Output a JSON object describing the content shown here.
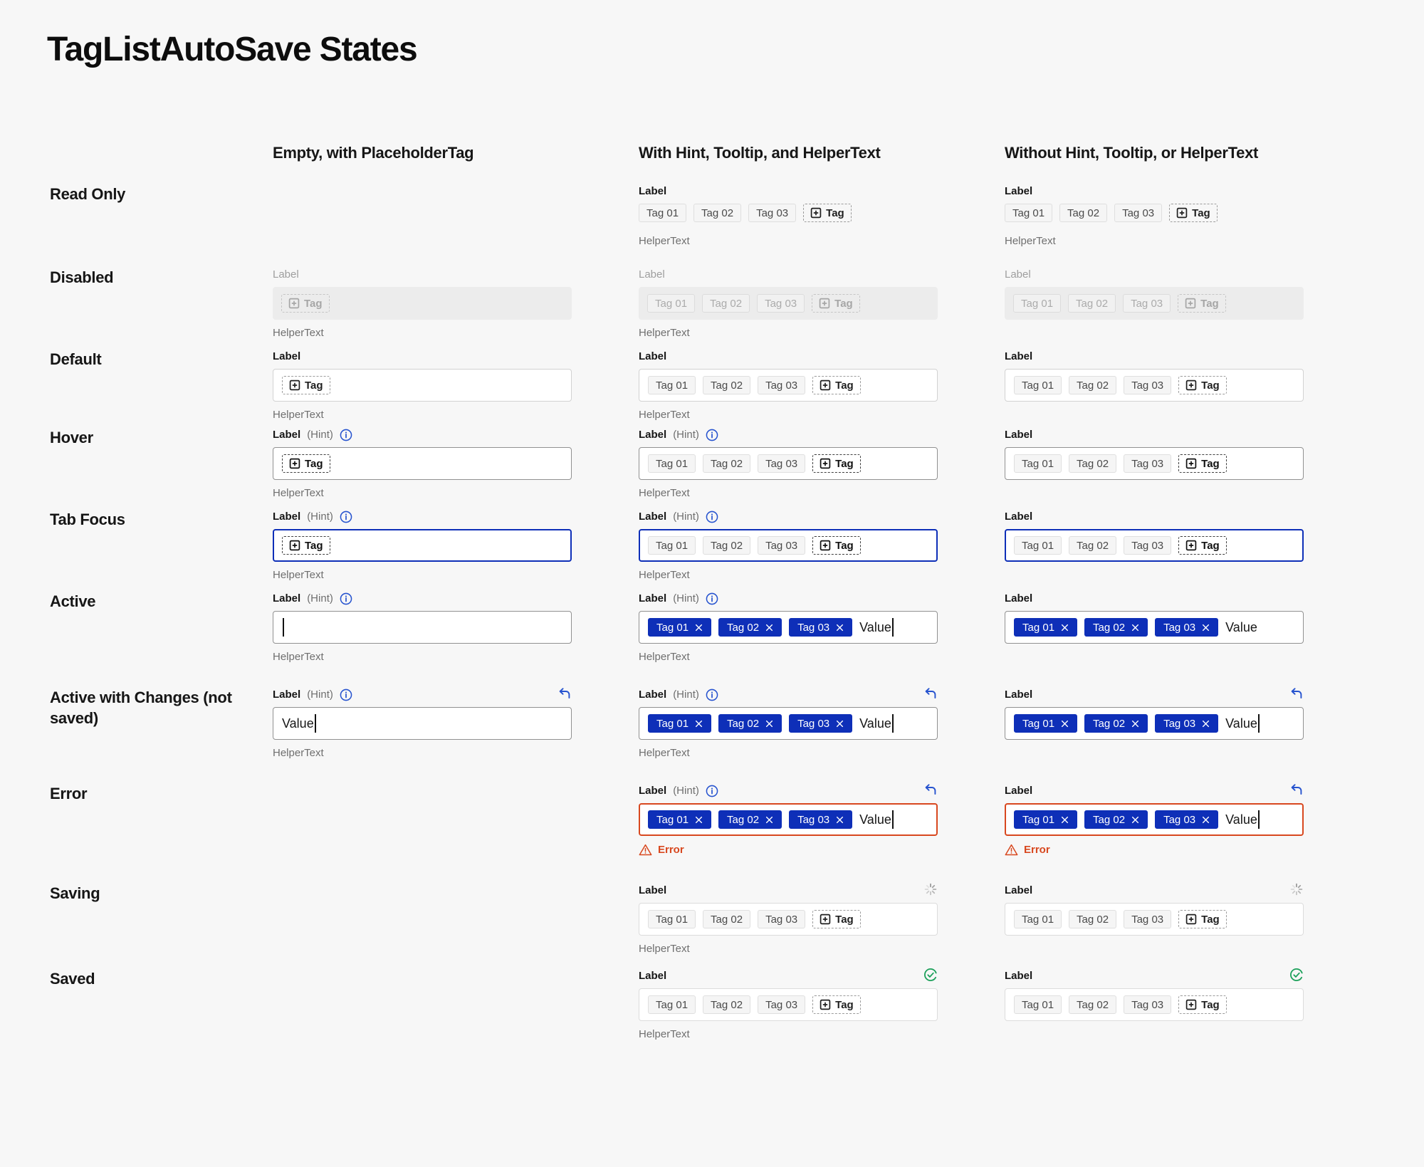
{
  "page": {
    "title": "TagListAutoSave States"
  },
  "colors": {
    "accent_blue": "#0E2FB8",
    "icon_blue": "#2653CF",
    "error_orange": "#D8481F",
    "success_green": "#1CA05A",
    "page_background": "#F7F7F7"
  },
  "strings": {
    "label": "Label",
    "hint": "(Hint)",
    "helper": "HelperText",
    "value": "Value",
    "error": "Error",
    "add_tag": "Tag",
    "tags": [
      "Tag 01",
      "Tag 02",
      "Tag 03"
    ]
  },
  "columns": [
    {
      "id": "empty-placeholder",
      "heading": "Empty, with PlaceholderTag"
    },
    {
      "id": "with-hint",
      "heading": "With Hint, Tooltip, and HelperText"
    },
    {
      "id": "without-hint",
      "heading": "Without Hint, Tooltip, or HelperText"
    }
  ],
  "rows": [
    {
      "name": "Read Only",
      "cells": [
        null,
        {
          "label": true,
          "box": "none",
          "tags": "gray",
          "addTag": "dark",
          "helper": true
        },
        {
          "label": true,
          "box": "none",
          "tags": "gray",
          "addTag": "dark",
          "helper": true
        }
      ]
    },
    {
      "name": "Disabled",
      "cells": [
        {
          "label": "disabled",
          "box": "disabled",
          "addTag": "gray",
          "helper": true
        },
        {
          "label": "disabled",
          "box": "disabled",
          "tags": "disabled",
          "addTag": "gray",
          "helper": true
        },
        {
          "label": "disabled",
          "box": "disabled",
          "tags": "disabled",
          "addTag": "gray"
        }
      ]
    },
    {
      "name": "Default",
      "cells": [
        {
          "label": true,
          "box": "default",
          "addTag": "dark",
          "helper": true
        },
        {
          "label": true,
          "box": "default",
          "tags": "gray",
          "addTag": "dark",
          "helper": true
        },
        {
          "label": true,
          "box": "default",
          "tags": "gray",
          "addTag": "dark"
        }
      ]
    },
    {
      "name": "Hover",
      "cells": [
        {
          "label": true,
          "hint": true,
          "box": "hover",
          "addTag": "strong",
          "helper": true
        },
        {
          "label": true,
          "hint": true,
          "box": "hover",
          "tags": "gray",
          "addTag": "strong",
          "helper": true
        },
        {
          "label": true,
          "box": "hover",
          "tags": "gray",
          "addTag": "strong"
        }
      ]
    },
    {
      "name": "Tab Focus",
      "cells": [
        {
          "label": true,
          "hint": true,
          "box": "focus",
          "addTag": "strong",
          "helper": true
        },
        {
          "label": true,
          "hint": true,
          "box": "focus",
          "tags": "gray",
          "addTag": "strong",
          "helper": true
        },
        {
          "label": true,
          "box": "focus",
          "tags": "gray",
          "addTag": "strong"
        }
      ]
    },
    {
      "name": "Active",
      "cells": [
        {
          "label": true,
          "hint": true,
          "box": "active",
          "cursor": true,
          "helper": true
        },
        {
          "label": true,
          "hint": true,
          "box": "active",
          "tags": "blue",
          "value": true,
          "cursor": true,
          "helper": true
        },
        {
          "label": true,
          "box": "active",
          "tags": "blue",
          "value": true
        }
      ]
    },
    {
      "name": "Active with Changes (not saved)",
      "cells": [
        {
          "label": true,
          "hint": true,
          "indicator": "undo",
          "box": "active",
          "value": true,
          "cursor": true,
          "helper": true
        },
        {
          "label": true,
          "hint": true,
          "indicator": "undo",
          "box": "active",
          "tags": "blue",
          "value": true,
          "cursor": true,
          "helper": true
        },
        {
          "label": true,
          "indicator": "undo",
          "box": "active",
          "tags": "blue",
          "value": true,
          "cursor": true
        }
      ]
    },
    {
      "name": "Error",
      "cells": [
        null,
        {
          "label": true,
          "hint": true,
          "indicator": "undo",
          "box": "error",
          "tags": "blue",
          "value": true,
          "cursor": true,
          "error": true
        },
        {
          "label": true,
          "indicator": "undo",
          "box": "error",
          "tags": "blue",
          "value": true,
          "cursor": true,
          "error": true
        }
      ]
    },
    {
      "name": "Saving",
      "cells": [
        null,
        {
          "label": true,
          "indicator": "spinner",
          "box": "autosave",
          "tags": "gray",
          "addTag": "dark",
          "helper": true
        },
        {
          "label": true,
          "indicator": "spinner",
          "box": "autosave",
          "tags": "gray",
          "addTag": "dark"
        }
      ]
    },
    {
      "name": "Saved",
      "cells": [
        null,
        {
          "label": true,
          "indicator": "check",
          "box": "autosave",
          "tags": "gray",
          "addTag": "dark",
          "helper": true
        },
        {
          "label": true,
          "indicator": "check",
          "box": "autosave",
          "tags": "gray",
          "addTag": "dark"
        }
      ]
    }
  ]
}
